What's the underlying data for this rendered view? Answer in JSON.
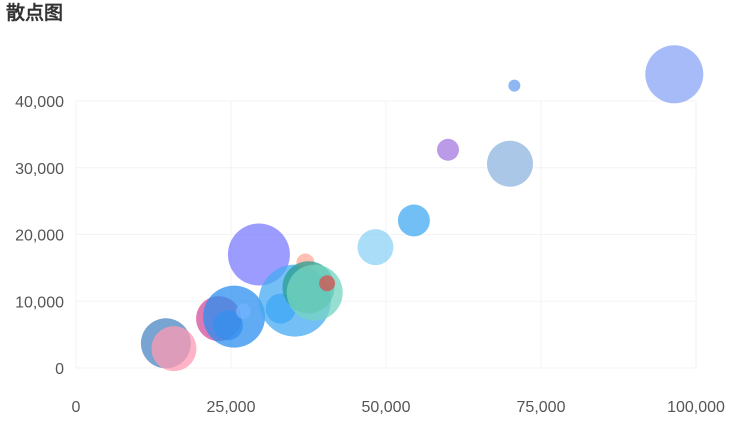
{
  "chart_data": {
    "type": "scatter",
    "title": "散点图",
    "xlim": [
      0,
      100000
    ],
    "ylim": [
      0,
      40000
    ],
    "x_ticks": [
      {
        "value": 0,
        "label": "0"
      },
      {
        "value": 25000,
        "label": "25,000"
      },
      {
        "value": 50000,
        "label": "50,000"
      },
      {
        "value": 75000,
        "label": "75,000"
      },
      {
        "value": 100000,
        "label": "100,000"
      }
    ],
    "y_ticks": [
      {
        "value": 0,
        "label": "0"
      },
      {
        "value": 10000,
        "label": "10,000"
      },
      {
        "value": 20000,
        "label": "20,000"
      },
      {
        "value": 30000,
        "label": "30,000"
      },
      {
        "value": 40000,
        "label": "40,000"
      }
    ],
    "grid": true,
    "points": [
      {
        "x": 14500,
        "y": 3700,
        "size": 50,
        "color": "#4a86c0"
      },
      {
        "x": 15800,
        "y": 2900,
        "size": 45,
        "color": "#ff99b3"
      },
      {
        "x": 23000,
        "y": 7400,
        "size": 45,
        "color": "#d14e9a"
      },
      {
        "x": 24500,
        "y": 6400,
        "size": 30,
        "color": "#4a90e2"
      },
      {
        "x": 25500,
        "y": 7700,
        "size": 62,
        "color": "#2b8ff0"
      },
      {
        "x": 27000,
        "y": 8500,
        "size": 15,
        "color": "#71b3ff"
      },
      {
        "x": 29500,
        "y": 17000,
        "size": 62,
        "color": "#7b7bff"
      },
      {
        "x": 33000,
        "y": 8900,
        "size": 30,
        "color": "#22a0ff"
      },
      {
        "x": 35300,
        "y": 10100,
        "size": 72,
        "color": "#45aaf2"
      },
      {
        "x": 37000,
        "y": 15800,
        "size": 18,
        "color": "#ffaa99"
      },
      {
        "x": 37500,
        "y": 12100,
        "size": 52,
        "color": "#2a9d8f"
      },
      {
        "x": 38500,
        "y": 11300,
        "size": 56,
        "color": "#74d4c0"
      },
      {
        "x": 40500,
        "y": 12700,
        "size": 16,
        "color": "#d94f4f"
      },
      {
        "x": 48300,
        "y": 18100,
        "size": 36,
        "color": "#8dd3f5"
      },
      {
        "x": 54500,
        "y": 22100,
        "size": 32,
        "color": "#42aaf0"
      },
      {
        "x": 60000,
        "y": 32700,
        "size": 22,
        "color": "#a47ae0"
      },
      {
        "x": 70000,
        "y": 30600,
        "size": 46,
        "color": "#8fb4e0"
      },
      {
        "x": 70700,
        "y": 42300,
        "size": 12,
        "color": "#6b9ff0"
      },
      {
        "x": 96500,
        "y": 44000,
        "size": 58,
        "color": "#8aa4f5"
      }
    ]
  }
}
